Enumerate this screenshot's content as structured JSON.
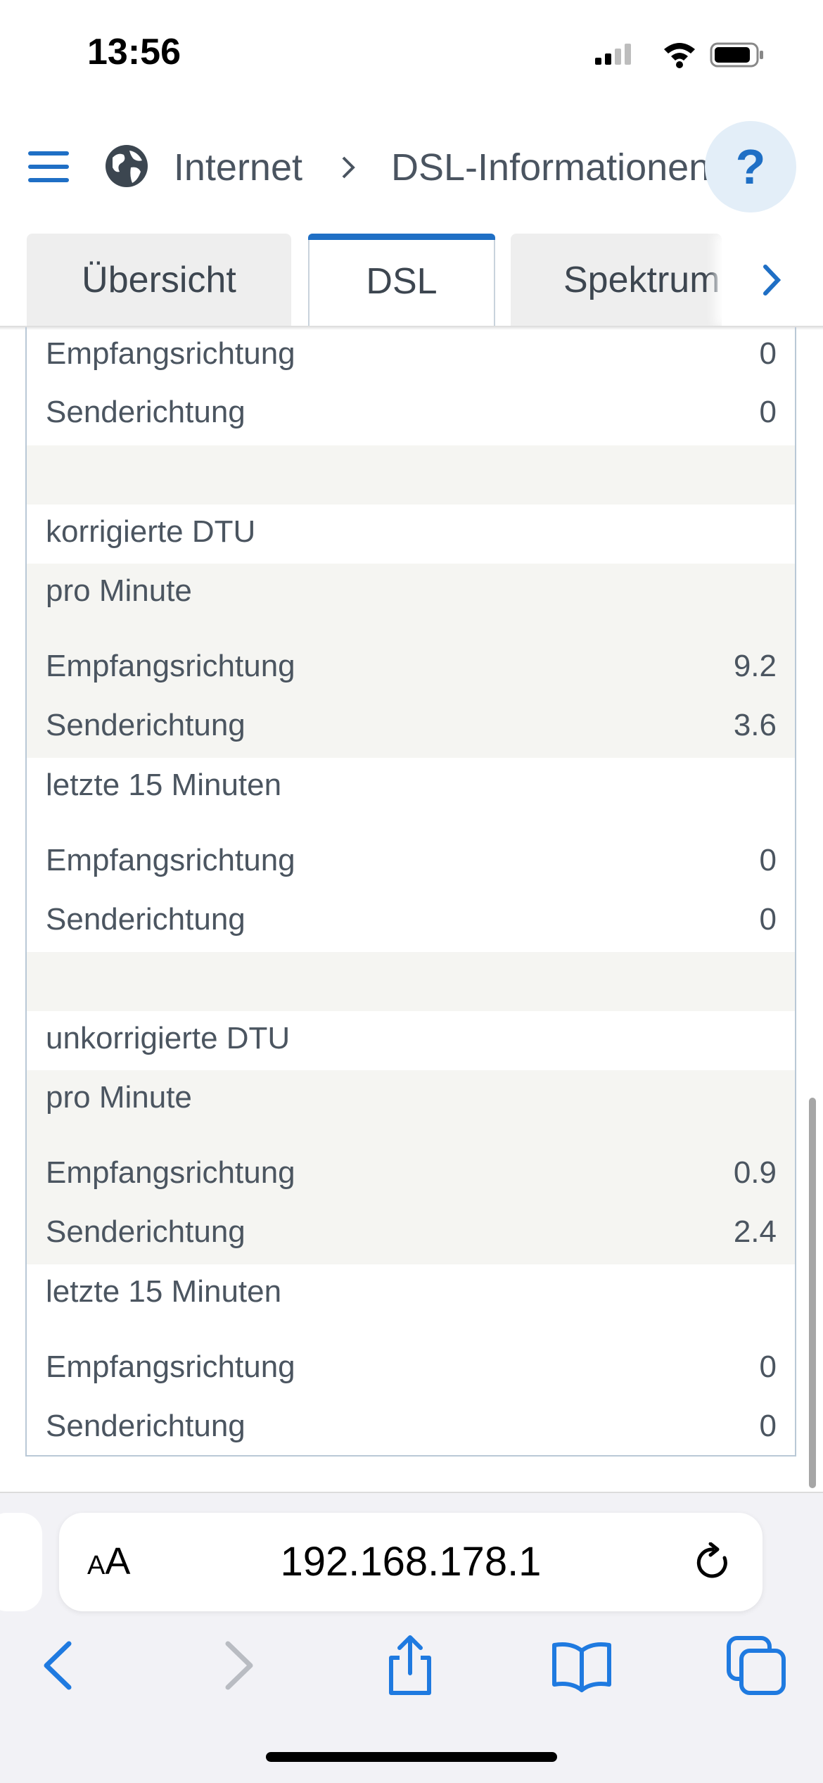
{
  "status_bar": {
    "time": "13:56"
  },
  "header": {
    "breadcrumb_parent": "Internet",
    "breadcrumb_current": "DSL-Informationen",
    "help_label": "?"
  },
  "tabs": [
    {
      "label": "Übersicht",
      "active": false
    },
    {
      "label": "DSL",
      "active": true
    },
    {
      "label": "Spektrum",
      "active": false
    }
  ],
  "table": {
    "rows": [
      {
        "label": "Empfangsrichtung",
        "value": "0"
      },
      {
        "label": "Senderichtung",
        "value": "0"
      },
      {
        "label": "",
        "value": ""
      },
      {
        "label": "korrigierte DTU",
        "value": ""
      },
      {
        "label": "pro Minute",
        "value": ""
      },
      {
        "label": "Empfangsrichtung",
        "value": "9.2"
      },
      {
        "label": "Senderichtung",
        "value": "3.6"
      },
      {
        "label": "letzte 15 Minuten",
        "value": ""
      },
      {
        "label": "Empfangsrichtung",
        "value": "0"
      },
      {
        "label": "Senderichtung",
        "value": "0"
      },
      {
        "label": "",
        "value": ""
      },
      {
        "label": "unkorrigierte DTU",
        "value": ""
      },
      {
        "label": "pro Minute",
        "value": ""
      },
      {
        "label": "Empfangsrichtung",
        "value": "0.9"
      },
      {
        "label": "Senderichtung",
        "value": "2.4"
      },
      {
        "label": "letzte 15 Minuten",
        "value": ""
      },
      {
        "label": "Empfangsrichtung",
        "value": "0"
      },
      {
        "label": "Senderichtung",
        "value": "0"
      }
    ]
  },
  "browser": {
    "text_size_label_small": "A",
    "text_size_label_large": "A",
    "url": "192.168.178.1"
  },
  "colors": {
    "accent": "#1f6fc5",
    "row_shade": "#f5f5f2",
    "text": "#4b5560"
  }
}
